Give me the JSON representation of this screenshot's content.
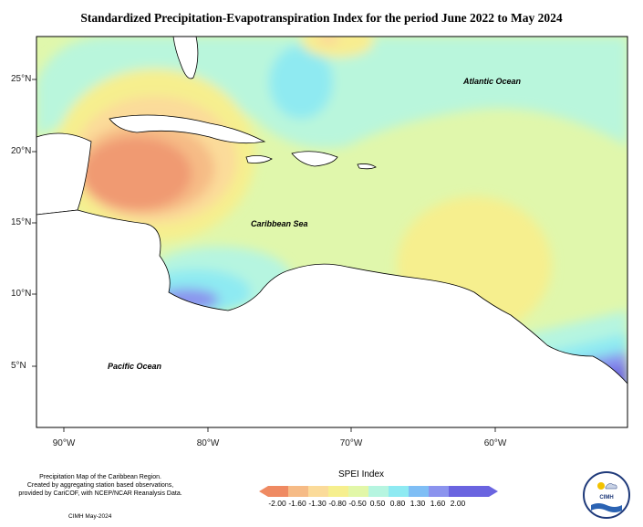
{
  "title": "Standardized Precipitation-Evapotranspiration Index for the period June 2022 to May 2024",
  "axes": {
    "latitude_labels": [
      "25°N",
      "20°N",
      "15°N",
      "10°N",
      "5°N"
    ],
    "longitude_labels": [
      "90°W",
      "80°W",
      "70°W",
      "60°W"
    ]
  },
  "ocean_labels": {
    "atlantic": "Atlantic Ocean",
    "caribbean": "Caribbean Sea",
    "pacific": "Pacific Ocean"
  },
  "footnote": {
    "line1": "Precipitation Map of the Caribbean Region.",
    "line2": "Created by aggregating station based observations,",
    "line3": "provided by CariCOF, with NCEP/NCAR Reanalysis Data.",
    "credit": "CIMH May-2024"
  },
  "legend": {
    "title": "SPEI Index",
    "ticks": [
      "-2.00",
      "-1.60",
      "-1.30",
      "-0.80",
      "-0.50",
      "0.50",
      "0.80",
      "1.30",
      "1.60",
      "2.00"
    ],
    "colors": [
      "#ef8a62",
      "#f6bb86",
      "#fbdb9a",
      "#f6ef8e",
      "#e2f7a8",
      "#b6f5e0",
      "#8eeaf2",
      "#7fbef5",
      "#8b93ee",
      "#6a64e0"
    ]
  },
  "logo": {
    "text": "CIMH"
  },
  "colors": {
    "base_field": "#e0f7ac",
    "dry": "#f08e68",
    "wet": "#6c68e2",
    "land_outline": "#000000"
  }
}
